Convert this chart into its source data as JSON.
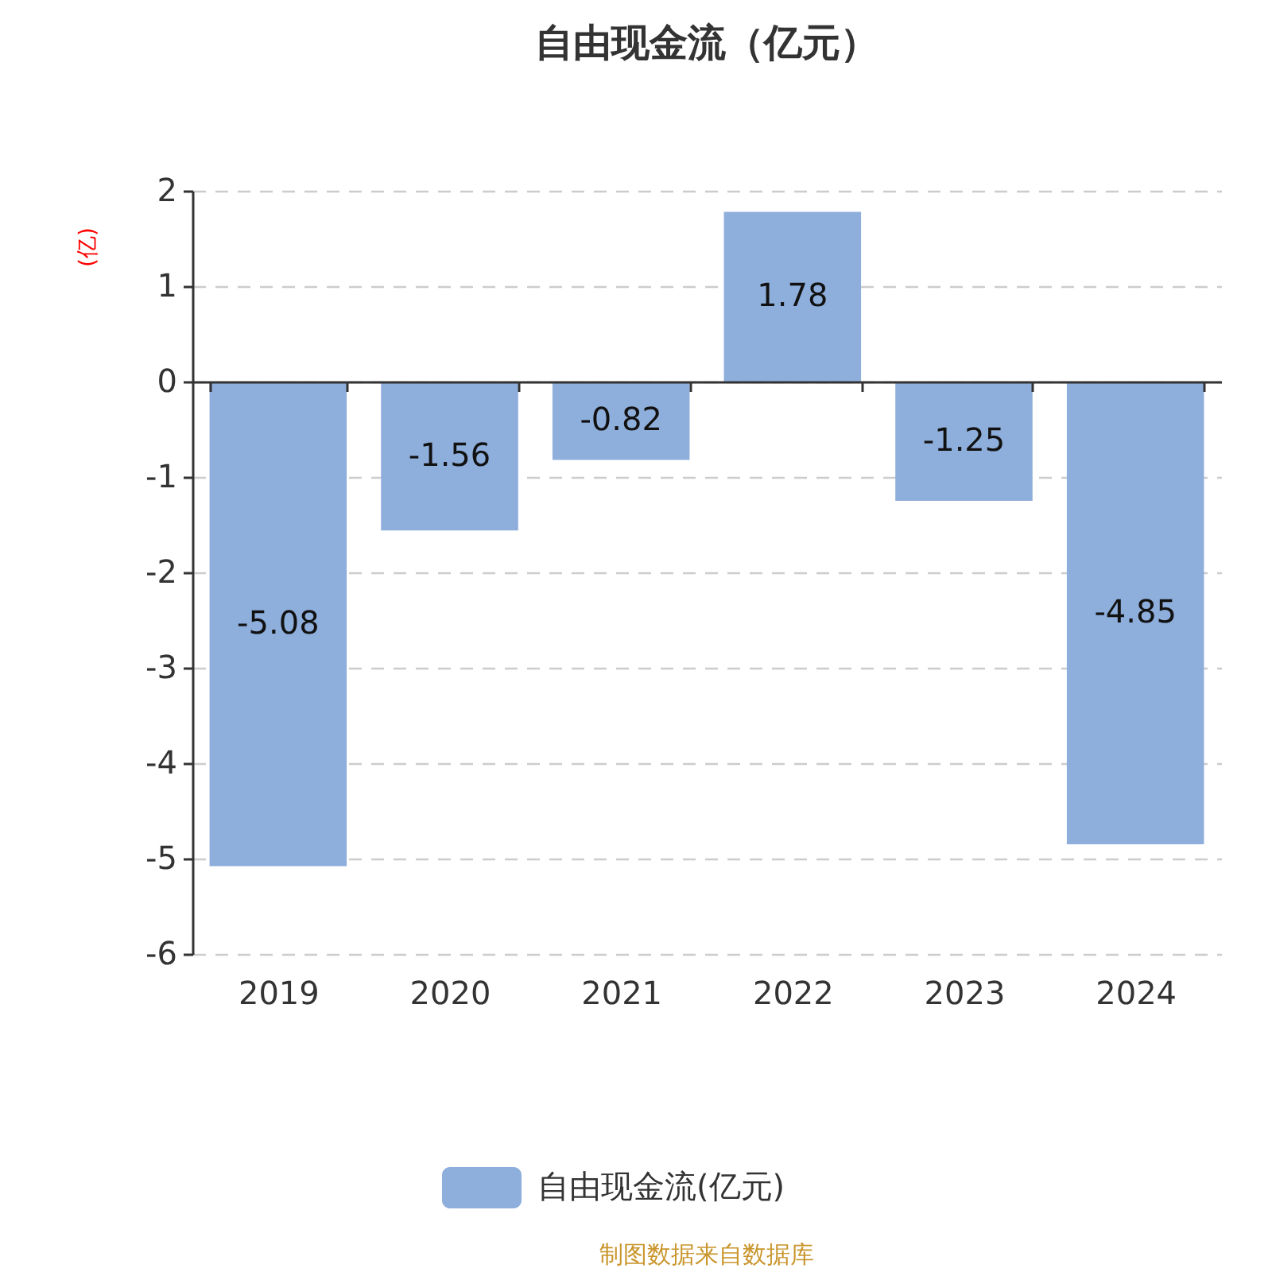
{
  "chart_data": {
    "type": "bar",
    "title": "自由现金流（亿元）",
    "ylabel": "(亿)",
    "categories": [
      "2019",
      "2020",
      "2021",
      "2022",
      "2023",
      "2024"
    ],
    "series": [
      {
        "name": "自由现金流(亿元)",
        "color": "#8eaedb",
        "values": [
          -5.08,
          -1.56,
          -0.82,
          1.78,
          -1.25,
          -4.85
        ]
      }
    ],
    "ylim": [
      -6,
      2
    ],
    "yticks": [
      -6,
      -5,
      -4,
      -3,
      -2,
      -1,
      0,
      1,
      2
    ],
    "grid": "y",
    "legend": "bottom",
    "data_labels": true,
    "annotations": [
      "制图数据来自数据库"
    ]
  }
}
